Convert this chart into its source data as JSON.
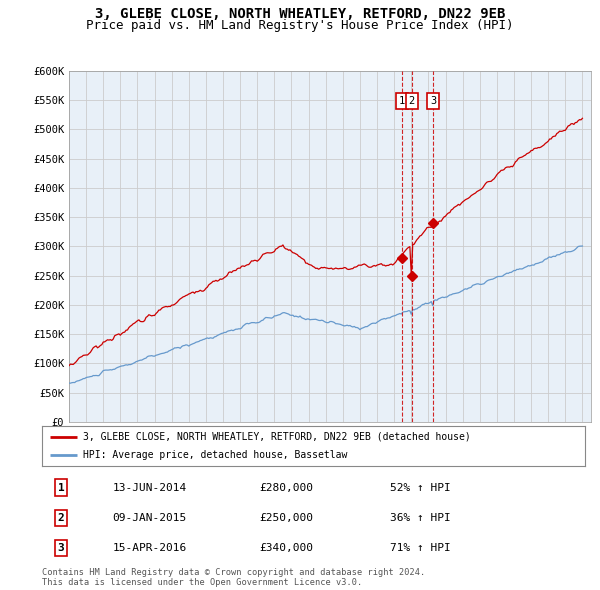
{
  "title": "3, GLEBE CLOSE, NORTH WHEATLEY, RETFORD, DN22 9EB",
  "subtitle": "Price paid vs. HM Land Registry's House Price Index (HPI)",
  "xlim_start": 1995.0,
  "xlim_end": 2025.5,
  "ylim_bottom": 0,
  "ylim_top": 600000,
  "yticks": [
    0,
    50000,
    100000,
    150000,
    200000,
    250000,
    300000,
    350000,
    400000,
    450000,
    500000,
    550000,
    600000
  ],
  "ytick_labels": [
    "£0",
    "£50K",
    "£100K",
    "£150K",
    "£200K",
    "£250K",
    "£300K",
    "£350K",
    "£400K",
    "£450K",
    "£500K",
    "£550K",
    "£600K"
  ],
  "sales": [
    {
      "label": "1",
      "date": 2014.44,
      "price": 280000
    },
    {
      "label": "2",
      "date": 2015.03,
      "price": 250000
    },
    {
      "label": "3",
      "date": 2016.29,
      "price": 340000
    }
  ],
  "sale_color": "#cc0000",
  "hpi_color": "#6699cc",
  "chart_bg": "#e8f0f8",
  "legend_red_label": "3, GLEBE CLOSE, NORTH WHEATLEY, RETFORD, DN22 9EB (detached house)",
  "legend_blue_label": "HPI: Average price, detached house, Bassetlaw",
  "table_entries": [
    {
      "num": "1",
      "date": "13-JUN-2014",
      "price": "£280,000",
      "pct": "52% ↑ HPI"
    },
    {
      "num": "2",
      "date": "09-JAN-2015",
      "price": "£250,000",
      "pct": "36% ↑ HPI"
    },
    {
      "num": "3",
      "date": "15-APR-2016",
      "price": "£340,000",
      "pct": "71% ↑ HPI"
    }
  ],
  "footer": "Contains HM Land Registry data © Crown copyright and database right 2024.\nThis data is licensed under the Open Government Licence v3.0.",
  "background_color": "#ffffff",
  "grid_color": "#cccccc",
  "title_fontsize": 10,
  "subtitle_fontsize": 9
}
